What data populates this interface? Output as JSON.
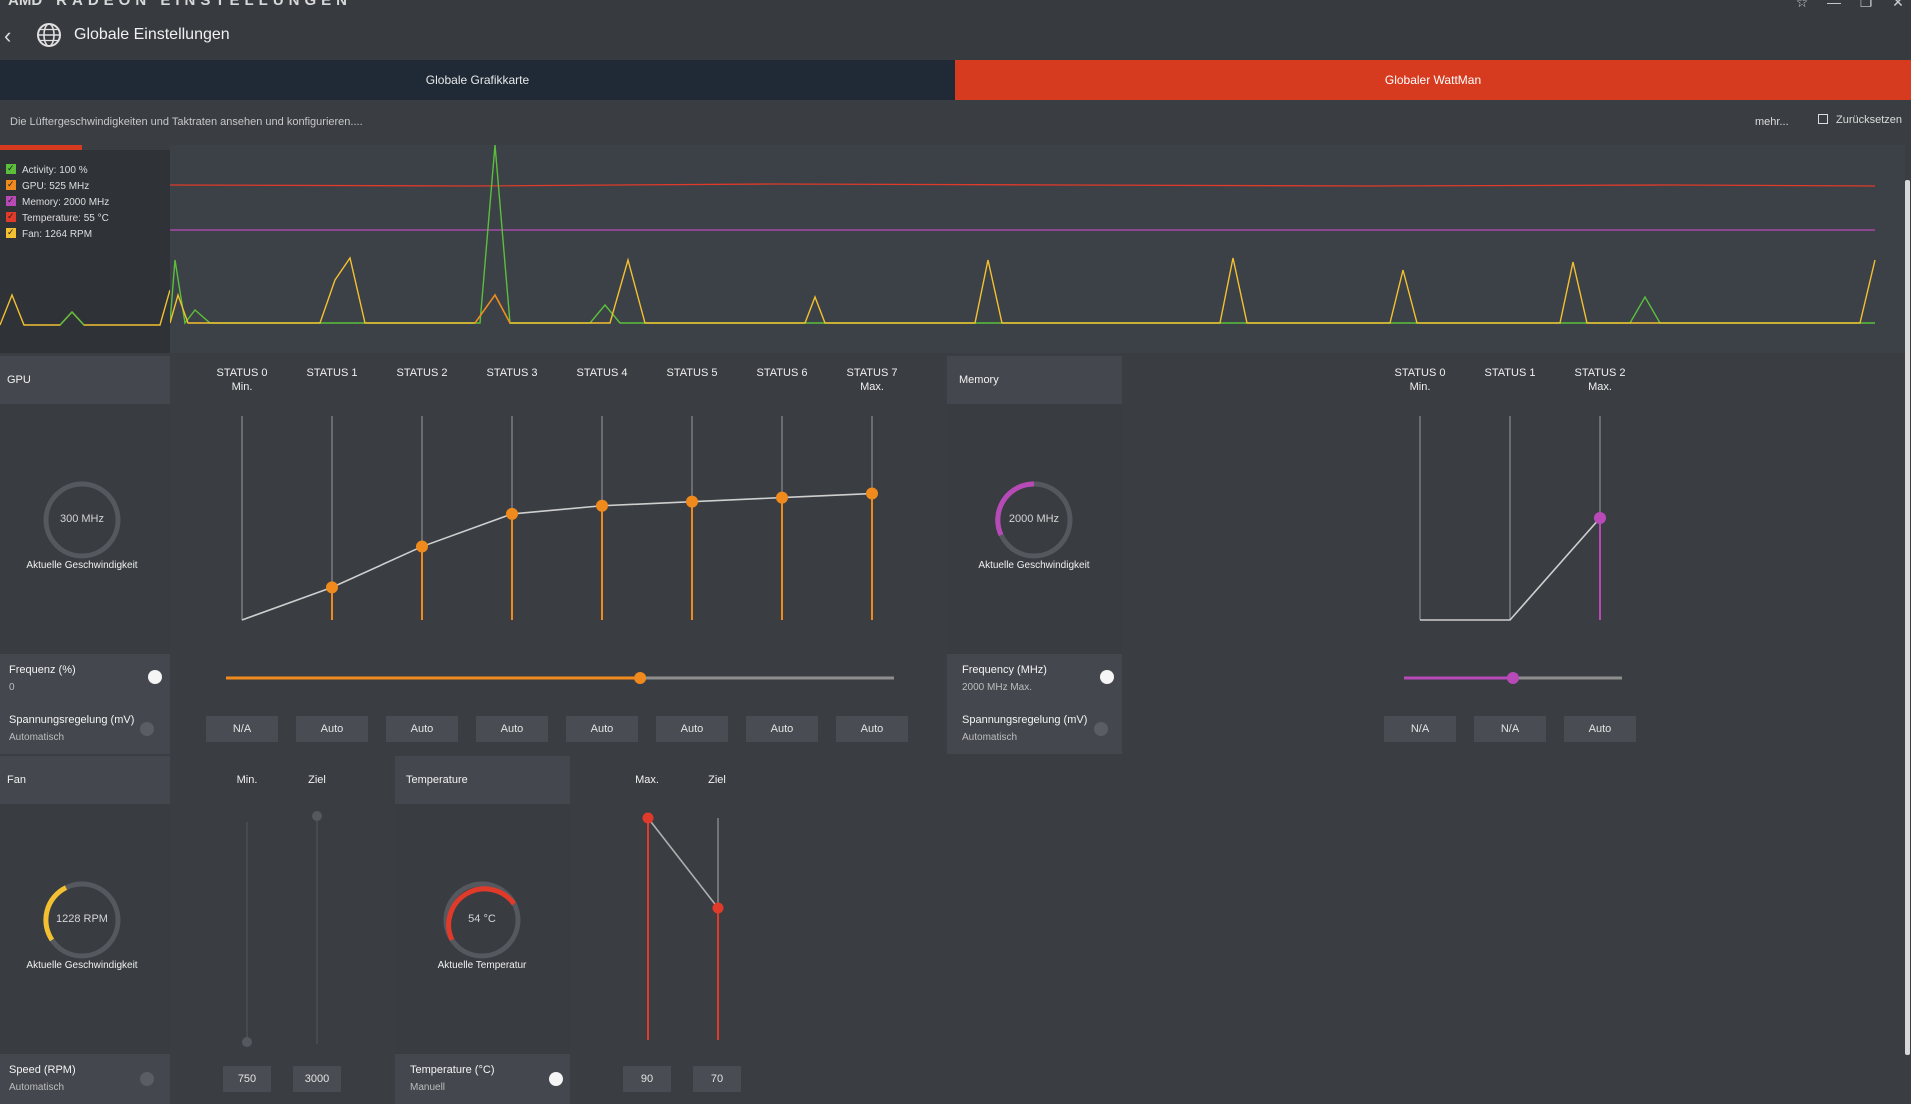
{
  "window": {
    "brand": "AMD",
    "app_name": "RADEON EINSTELLUNGEN",
    "icons": [
      "star-icon",
      "minimize-icon",
      "restore-icon",
      "close-icon"
    ]
  },
  "header": {
    "back_icon": "back-chevron-icon",
    "page_icon": "globe-icon",
    "title": "Globale Einstellungen"
  },
  "tabs": [
    {
      "label": "Globale Grafikkarte",
      "active": false
    },
    {
      "label": "Globaler WattMan",
      "active": true,
      "color": "#d63a1f"
    }
  ],
  "description": "Die Lüftergeschwindigkeiten und Taktraten ansehen und konfigurieren....",
  "more_label": "mehr...",
  "reset_label": "Zurücksetzen",
  "monitor": {
    "legend": [
      {
        "label": "Activity: 100 %",
        "color": "#5bbf3c"
      },
      {
        "label": "GPU: 525 MHz",
        "color": "#f08a1c"
      },
      {
        "label": "Memory: 2000 MHz",
        "color": "#b84ab8"
      },
      {
        "label": "Temperature: 55 °C",
        "color": "#e03a2a"
      },
      {
        "label": "Fan: 1264 RPM",
        "color": "#f2c030"
      }
    ]
  },
  "gpu": {
    "title": "GPU",
    "status_labels": [
      {
        "name": "STATUS 0",
        "sub": "Min."
      },
      {
        "name": "STATUS 1",
        "sub": ""
      },
      {
        "name": "STATUS 2",
        "sub": ""
      },
      {
        "name": "STATUS 3",
        "sub": ""
      },
      {
        "name": "STATUS 4",
        "sub": ""
      },
      {
        "name": "STATUS 5",
        "sub": ""
      },
      {
        "name": "STATUS 6",
        "sub": ""
      },
      {
        "name": "STATUS 7",
        "sub": "Max."
      }
    ],
    "gauge_value": "300 MHz",
    "gauge_label": "Aktuelle Geschwindigkeit",
    "state_levels": [
      0.0,
      0.16,
      0.36,
      0.52,
      0.56,
      0.58,
      0.6,
      0.62
    ],
    "freq_title": "Frequenz (%)",
    "freq_value": "0",
    "freq_slider_fraction": 0.62,
    "volt_title": "Spannungsregelung (mV)",
    "volt_sub": "Automatisch",
    "voltages": [
      "N/A",
      "Auto",
      "Auto",
      "Auto",
      "Auto",
      "Auto",
      "Auto",
      "Auto"
    ],
    "accent": "#f08a1c"
  },
  "memory": {
    "title": "Memory",
    "status_labels": [
      {
        "name": "STATUS 0",
        "sub": "Min."
      },
      {
        "name": "STATUS 1",
        "sub": ""
      },
      {
        "name": "STATUS 2",
        "sub": "Max."
      }
    ],
    "gauge_value": "2000 MHz",
    "gauge_label": "Aktuelle Geschwindigkeit",
    "state_levels": [
      0.0,
      0.0,
      0.5
    ],
    "freq_title": "Frequency (MHz)",
    "freq_value": "2000 MHz Max.",
    "freq_slider_fraction": 0.5,
    "volt_title": "Spannungsregelung (mV)",
    "volt_sub": "Automatisch",
    "voltages": [
      "N/A",
      "N/A",
      "Auto"
    ],
    "accent": "#b84ab8"
  },
  "fan": {
    "title": "Fan",
    "col_min": "Min.",
    "col_target": "Ziel",
    "gauge_value": "1228 RPM",
    "gauge_label": "Aktuelle Geschwindigkeit",
    "speed_title": "Speed (RPM)",
    "speed_sub": "Automatisch",
    "min_value": "750",
    "target_value": "3000",
    "accent": "#f2c030"
  },
  "temperature": {
    "title": "Temperature",
    "col_max": "Max.",
    "col_target": "Ziel",
    "gauge_value": "54 °C",
    "gauge_label": "Aktuelle Temperatur",
    "temp_title": "Temperature (°C)",
    "temp_sub": "Manuell",
    "max_value": "90",
    "target_value": "70",
    "accent": "#e03a2a"
  }
}
